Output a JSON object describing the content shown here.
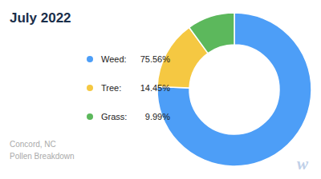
{
  "chart_data": {
    "type": "pie",
    "title": "July 2022",
    "subtitle": "Concord, NC\nPollen Breakdown",
    "categories": [
      "Weed:",
      "Tree:",
      "Grass:"
    ],
    "values": [
      75.56,
      14.45,
      9.99
    ],
    "value_labels": [
      "75.56%",
      "14.45%",
      "9.99%"
    ],
    "colors": [
      "#4d9ef7",
      "#f5c842",
      "#5cb85c"
    ],
    "legend": "left",
    "annotations": [
      "w"
    ]
  }
}
